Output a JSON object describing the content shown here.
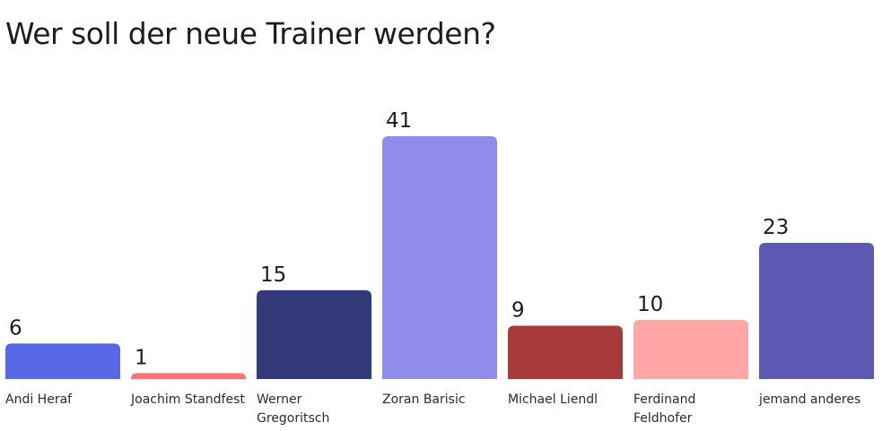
{
  "title": "Wer soll der neue Trainer werden?",
  "chart_data": {
    "type": "bar",
    "title": "Wer soll der neue Trainer werden?",
    "xlabel": "",
    "ylabel": "",
    "grid": false,
    "show_value_labels": true,
    "categories": [
      "Andi Heraf",
      "Joachim Standfest",
      "Werner Gregoritsch",
      "Zoran Barisic",
      "Michael Liendl",
      "Ferdinand Feldhofer",
      "jemand anderes"
    ],
    "category_label_lines": [
      [
        "Andi Heraf"
      ],
      [
        "Joachim Standfest"
      ],
      [
        "Werner",
        "Gregoritsch"
      ],
      [
        "Zoran Barisic"
      ],
      [
        "Michael Liendl"
      ],
      [
        "Ferdinand",
        "Feldhofer"
      ],
      [
        "jemand anderes"
      ]
    ],
    "values": [
      6,
      1,
      15,
      41,
      9,
      10,
      23
    ],
    "colors": [
      "#5769e7",
      "#ff7272",
      "#323a7a",
      "#8f8cec",
      "#a73b3b",
      "#ffa6a6",
      "#5d59b3"
    ],
    "ylim": [
      0,
      41
    ]
  }
}
